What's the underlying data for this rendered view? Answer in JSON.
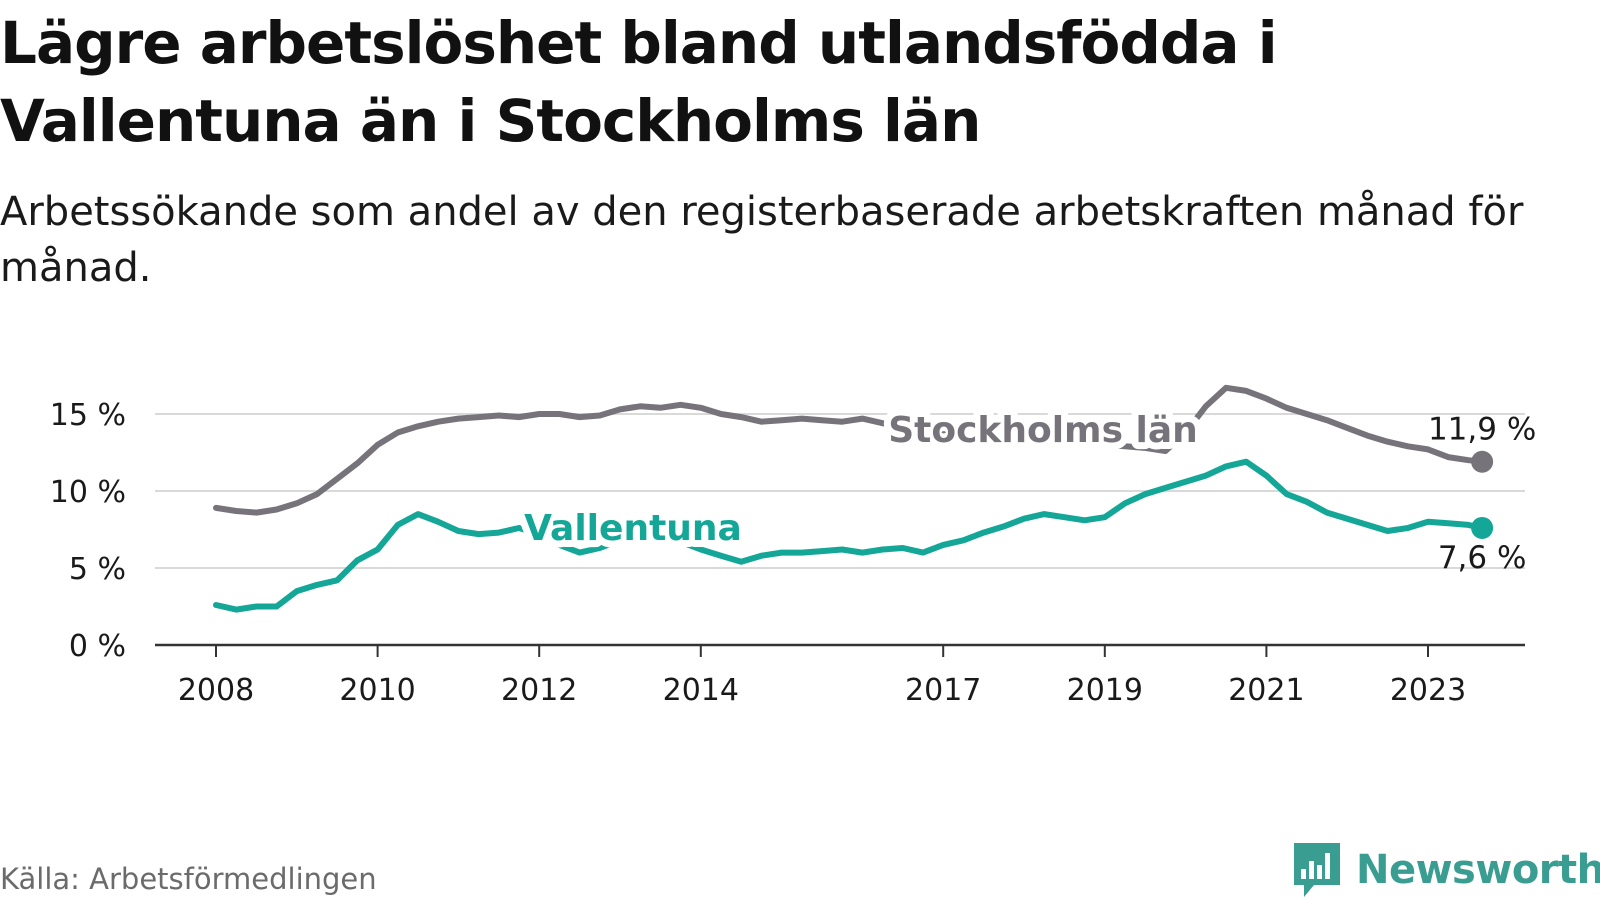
{
  "title": "Lägre arbetslöshet bland utlandsfödda i Vallentuna än i Stockholms län",
  "subtitle": "Arbetssökande som andel av den registerbaserade arbetskraften månad för månad.",
  "source": "Källa: Arbetsförmedlingen",
  "logo_text": "Newsworthy",
  "colors": {
    "stockholm": "#76747a",
    "vallentuna": "#14a697",
    "grid": "#d9d9d9",
    "axis": "#333333",
    "brand": "#3a9d91"
  },
  "chart_data": {
    "type": "line",
    "title": "Lägre arbetslöshet bland utlandsfödda i Vallentuna än i Stockholms län",
    "xlabel": "",
    "ylabel": "",
    "xlim": [
      2007.4,
      2024.1
    ],
    "ylim": [
      0,
      17
    ],
    "y_ticks": [
      0,
      5,
      10,
      15
    ],
    "y_tick_labels": [
      "0 %",
      "5 %",
      "10 %",
      "15 %"
    ],
    "x_ticks": [
      2008,
      2010,
      2012,
      2014,
      2017,
      2019,
      2021,
      2023
    ],
    "x_tick_labels": [
      "2008",
      "2010",
      "2012",
      "2014",
      "2017",
      "2019",
      "2021",
      "2023"
    ],
    "series": [
      {
        "name": "Stockholms län",
        "color": "#76747a",
        "end_label": "11,9 %",
        "points": [
          [
            2008.0,
            8.9
          ],
          [
            2008.25,
            8.7
          ],
          [
            2008.5,
            8.6
          ],
          [
            2008.75,
            8.8
          ],
          [
            2009.0,
            9.2
          ],
          [
            2009.25,
            9.8
          ],
          [
            2009.5,
            10.8
          ],
          [
            2009.75,
            11.8
          ],
          [
            2010.0,
            13.0
          ],
          [
            2010.25,
            13.8
          ],
          [
            2010.5,
            14.2
          ],
          [
            2010.75,
            14.5
          ],
          [
            2011.0,
            14.7
          ],
          [
            2011.25,
            14.8
          ],
          [
            2011.5,
            14.9
          ],
          [
            2011.75,
            14.8
          ],
          [
            2012.0,
            15.0
          ],
          [
            2012.25,
            15.0
          ],
          [
            2012.5,
            14.8
          ],
          [
            2012.75,
            14.9
          ],
          [
            2013.0,
            15.3
          ],
          [
            2013.25,
            15.5
          ],
          [
            2013.5,
            15.4
          ],
          [
            2013.75,
            15.6
          ],
          [
            2014.0,
            15.4
          ],
          [
            2014.25,
            15.0
          ],
          [
            2014.5,
            14.8
          ],
          [
            2014.75,
            14.5
          ],
          [
            2015.0,
            14.6
          ],
          [
            2015.25,
            14.7
          ],
          [
            2015.5,
            14.6
          ],
          [
            2015.75,
            14.5
          ],
          [
            2016.0,
            14.7
          ],
          [
            2016.25,
            14.4
          ],
          [
            2016.5,
            14.1
          ],
          [
            2016.75,
            13.9
          ],
          [
            2017.0,
            13.8
          ],
          [
            2017.25,
            13.7
          ],
          [
            2017.5,
            13.6
          ],
          [
            2017.75,
            13.5
          ],
          [
            2018.0,
            13.4
          ],
          [
            2018.25,
            13.3
          ],
          [
            2018.5,
            13.2
          ],
          [
            2018.75,
            13.1
          ],
          [
            2019.0,
            13.0
          ],
          [
            2019.25,
            12.9
          ],
          [
            2019.5,
            12.8
          ],
          [
            2019.75,
            12.6
          ],
          [
            2020.0,
            13.8
          ],
          [
            2020.25,
            15.5
          ],
          [
            2020.5,
            16.7
          ],
          [
            2020.75,
            16.5
          ],
          [
            2021.0,
            16.0
          ],
          [
            2021.25,
            15.4
          ],
          [
            2021.5,
            15.0
          ],
          [
            2021.75,
            14.6
          ],
          [
            2022.0,
            14.1
          ],
          [
            2022.25,
            13.6
          ],
          [
            2022.5,
            13.2
          ],
          [
            2022.75,
            12.9
          ],
          [
            2023.0,
            12.7
          ],
          [
            2023.25,
            12.2
          ],
          [
            2023.5,
            12.0
          ],
          [
            2023.67,
            11.9
          ]
        ]
      },
      {
        "name": "Vallentuna",
        "color": "#14a697",
        "end_label": "7,6 %",
        "points": [
          [
            2008.0,
            2.6
          ],
          [
            2008.25,
            2.3
          ],
          [
            2008.5,
            2.5
          ],
          [
            2008.75,
            2.5
          ],
          [
            2009.0,
            3.5
          ],
          [
            2009.25,
            3.9
          ],
          [
            2009.5,
            4.2
          ],
          [
            2009.75,
            5.5
          ],
          [
            2010.0,
            6.2
          ],
          [
            2010.25,
            7.8
          ],
          [
            2010.5,
            8.5
          ],
          [
            2010.75,
            8.0
          ],
          [
            2011.0,
            7.4
          ],
          [
            2011.25,
            7.2
          ],
          [
            2011.5,
            7.3
          ],
          [
            2011.75,
            7.6
          ],
          [
            2012.0,
            7.2
          ],
          [
            2012.25,
            6.5
          ],
          [
            2012.5,
            6.0
          ],
          [
            2012.75,
            6.3
          ],
          [
            2013.0,
            6.8
          ],
          [
            2013.25,
            6.9
          ],
          [
            2013.5,
            6.9
          ],
          [
            2013.75,
            6.7
          ],
          [
            2014.0,
            6.2
          ],
          [
            2014.25,
            5.8
          ],
          [
            2014.5,
            5.4
          ],
          [
            2014.75,
            5.8
          ],
          [
            2015.0,
            6.0
          ],
          [
            2015.25,
            6.0
          ],
          [
            2015.5,
            6.1
          ],
          [
            2015.75,
            6.2
          ],
          [
            2016.0,
            6.0
          ],
          [
            2016.25,
            6.2
          ],
          [
            2016.5,
            6.3
          ],
          [
            2016.75,
            6.0
          ],
          [
            2017.0,
            6.5
          ],
          [
            2017.25,
            6.8
          ],
          [
            2017.5,
            7.3
          ],
          [
            2017.75,
            7.7
          ],
          [
            2018.0,
            8.2
          ],
          [
            2018.25,
            8.5
          ],
          [
            2018.5,
            8.3
          ],
          [
            2018.75,
            8.1
          ],
          [
            2019.0,
            8.3
          ],
          [
            2019.25,
            9.2
          ],
          [
            2019.5,
            9.8
          ],
          [
            2019.75,
            10.2
          ],
          [
            2020.0,
            10.6
          ],
          [
            2020.25,
            11.0
          ],
          [
            2020.5,
            11.6
          ],
          [
            2020.75,
            11.9
          ],
          [
            2021.0,
            11.0
          ],
          [
            2021.25,
            9.8
          ],
          [
            2021.5,
            9.3
          ],
          [
            2021.75,
            8.6
          ],
          [
            2022.0,
            8.2
          ],
          [
            2022.25,
            7.8
          ],
          [
            2022.5,
            7.4
          ],
          [
            2022.75,
            7.6
          ],
          [
            2023.0,
            8.0
          ],
          [
            2023.25,
            7.9
          ],
          [
            2023.5,
            7.8
          ],
          [
            2023.67,
            7.6
          ]
        ]
      }
    ],
    "series_labels": [
      {
        "series": "Stockholms län",
        "text": "Stockholms län"
      },
      {
        "series": "Vallentuna",
        "text": "Vallentuna"
      }
    ]
  }
}
